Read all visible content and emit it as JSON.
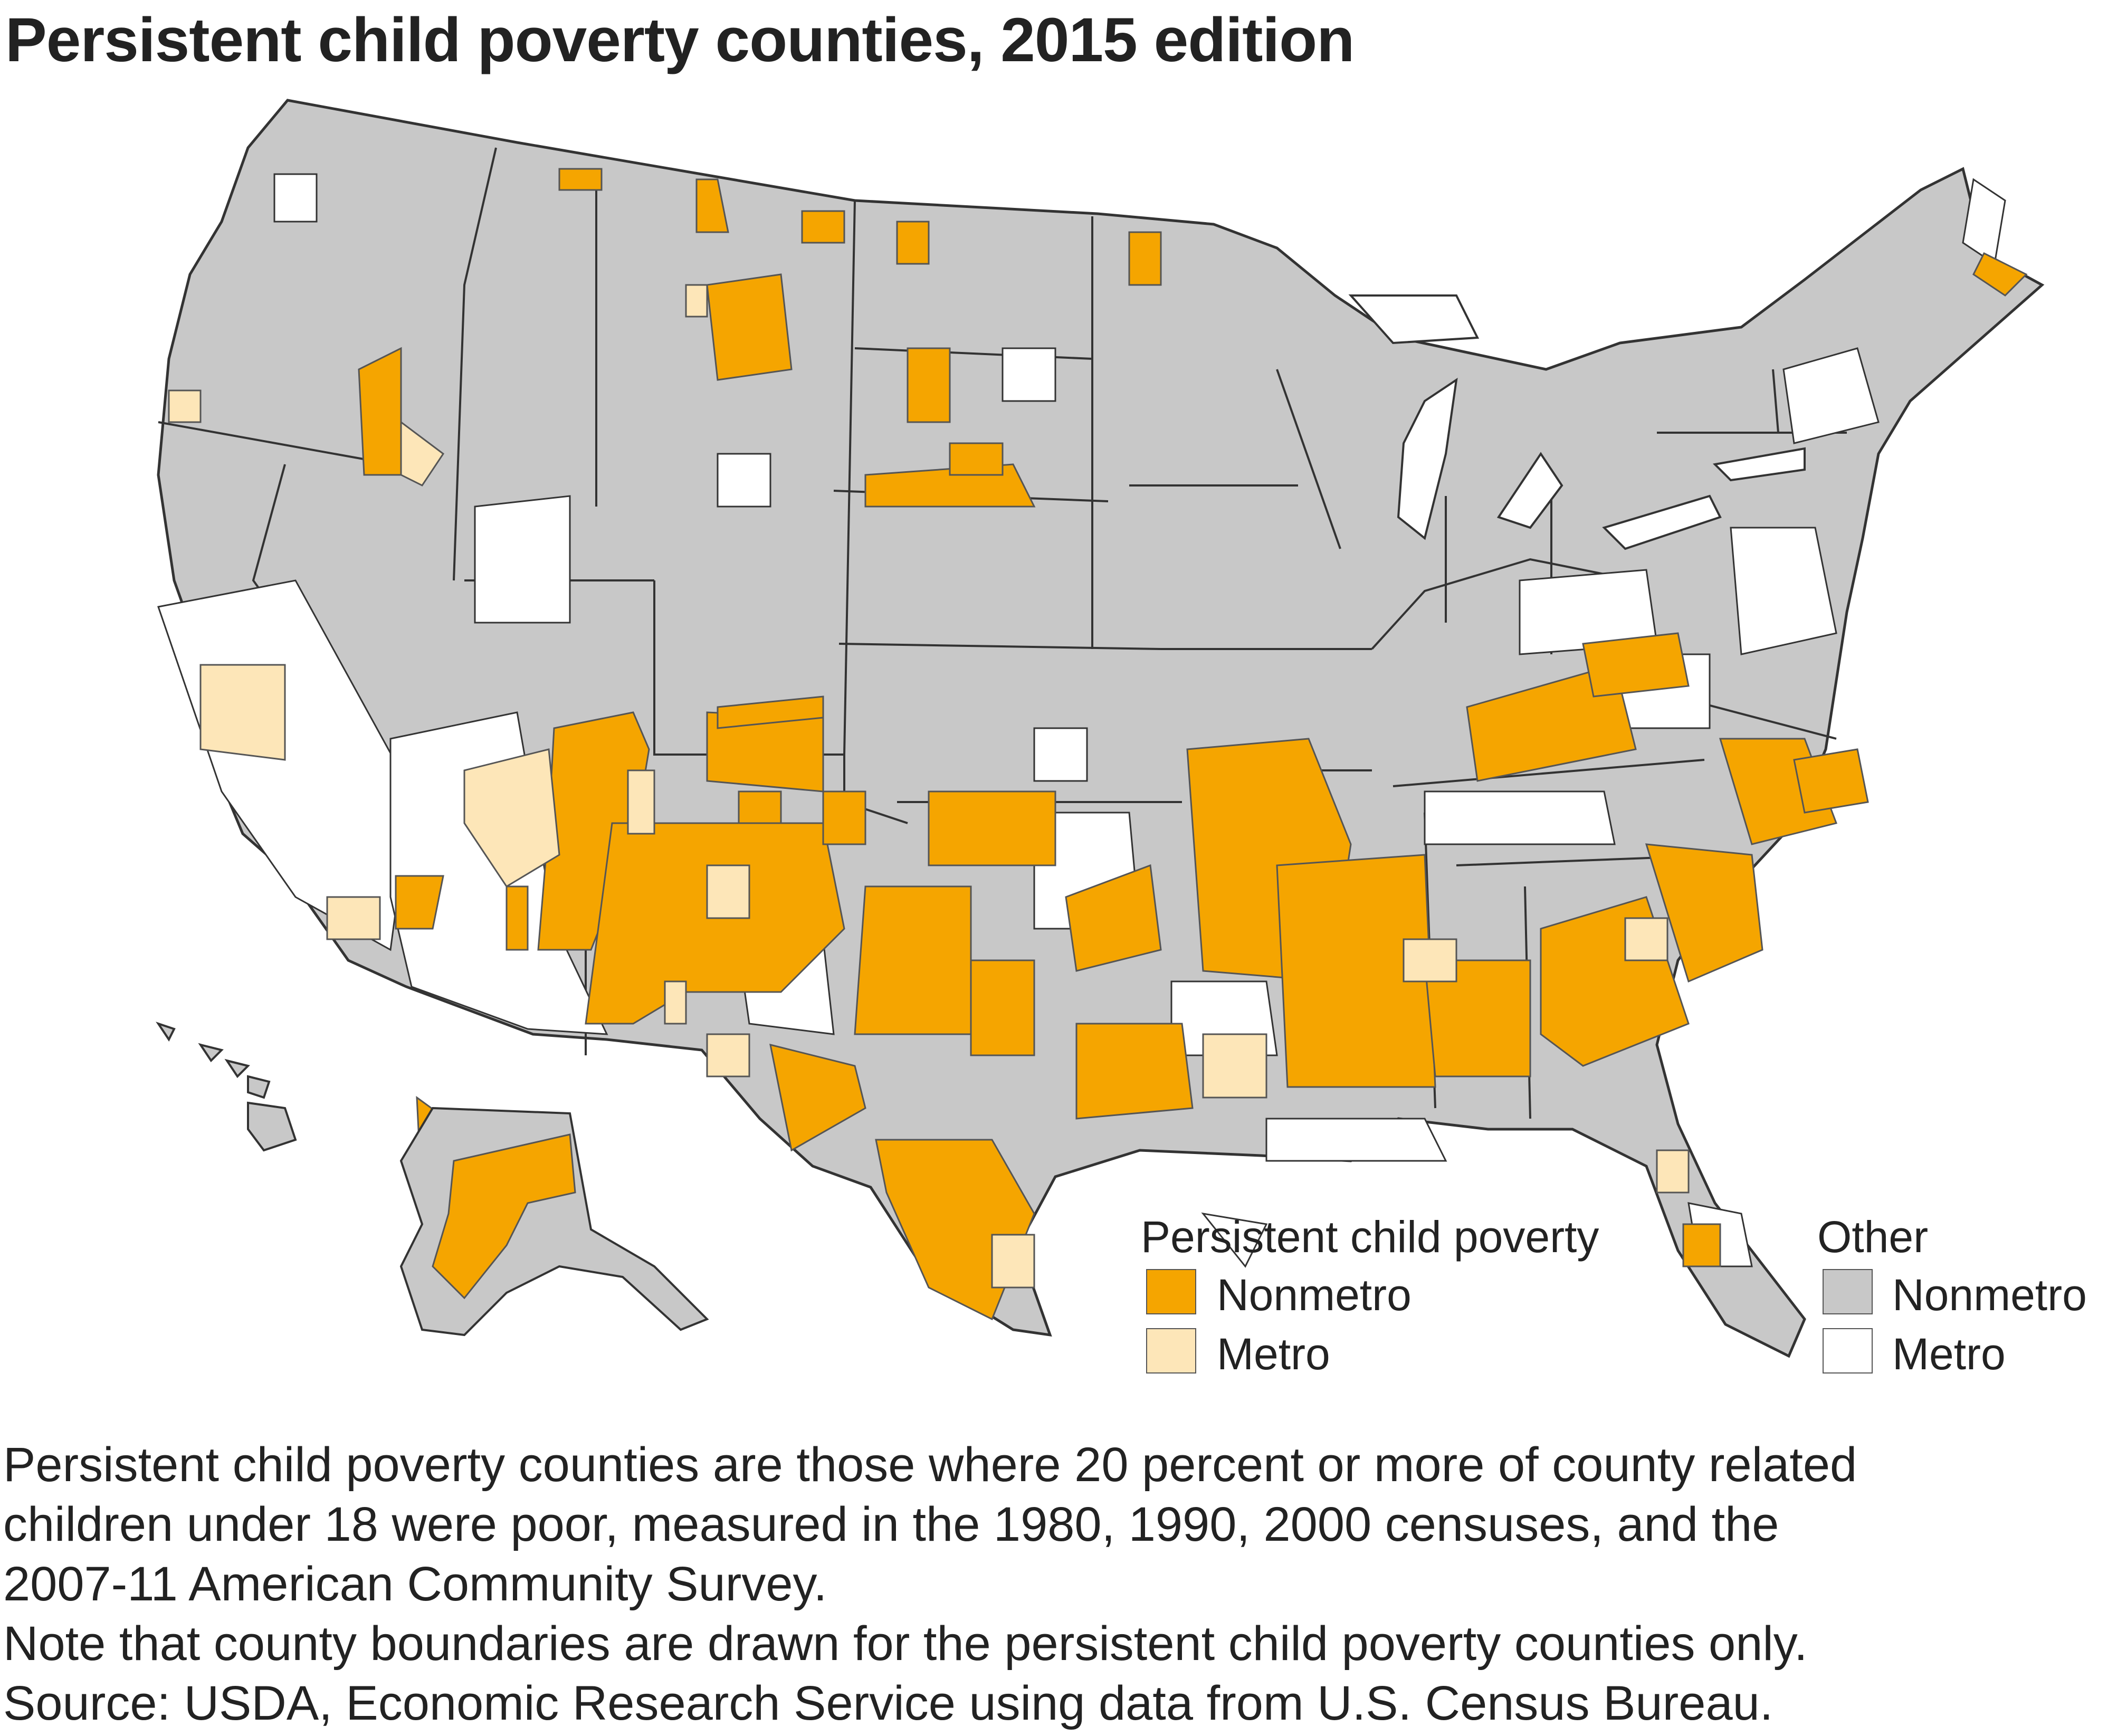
{
  "title": "Persistent child poverty counties, 2015 edition",
  "legend": {
    "group_pcp": "Persistent child poverty",
    "group_other": "Other",
    "items": [
      {
        "label": "Nonmetro",
        "color": "#F5A500"
      },
      {
        "label": "Metro",
        "color": "#FDE6B8"
      },
      {
        "label": "Nonmetro",
        "color": "#C8C8C8"
      },
      {
        "label": "Metro",
        "color": "#FFFFFF"
      }
    ]
  },
  "colors": {
    "pcp_nonmetro": "#F5A500",
    "pcp_metro": "#FDE6B8",
    "other_nonmetro": "#C8C8C8",
    "other_metro": "#FFFFFF",
    "border": "#333333"
  },
  "footnote": {
    "line1": "Persistent child poverty counties are those where 20 percent or more of county related",
    "line2": "children under 18 were poor, measured in the 1980, 1990, 2000 censuses, and the",
    "line3": "2007-11 American Community Survey.",
    "line4": "Note that county boundaries are drawn for the persistent child poverty counties only.",
    "line5": "Source: USDA, Economic Research Service using data from U.S. Census Bureau."
  }
}
